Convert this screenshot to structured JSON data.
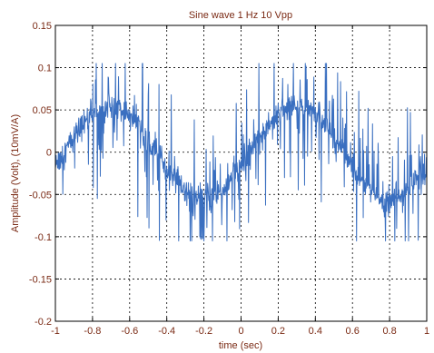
{
  "chart_data": {
    "type": "line",
    "title": "Sine wave 1 Hz 10 Vpp",
    "xlabel": "time (sec)",
    "ylabel": "Amplitude (Volt), (10mV/A)",
    "xlim": [
      -1,
      1
    ],
    "ylim": [
      -0.2,
      0.15
    ],
    "xticks": [
      -1,
      -0.8,
      -0.6,
      -0.4,
      -0.2,
      0,
      0.2,
      0.4,
      0.6,
      0.8,
      1
    ],
    "xtick_labels": [
      "-1",
      "-0.8",
      "-0.6",
      "-0.4",
      "-0.2",
      "0",
      "0.2",
      "0.4",
      "0.6",
      "0.8",
      "1"
    ],
    "yticks": [
      -0.2,
      -0.15,
      -0.1,
      -0.05,
      0,
      0.05,
      0.1,
      0.15
    ],
    "ytick_labels": [
      "-0.2",
      "-0.15",
      "-0.1",
      "-0.05",
      "0",
      "0.05",
      "0.1",
      "0.15"
    ],
    "grid": true,
    "grid_style": "dotted",
    "colors": {
      "line": "#3a6fc0",
      "text": "#7a2a14",
      "grid": "#000000"
    },
    "series": [
      {
        "signal_estimate": {
          "amplitude": 0.055,
          "frequency_hz": 1,
          "offset": 0,
          "phase_rad": -0.3,
          "noise_std": 0.008,
          "spike_max": 0.105,
          "x_step": 0.002
        }
      }
    ]
  }
}
